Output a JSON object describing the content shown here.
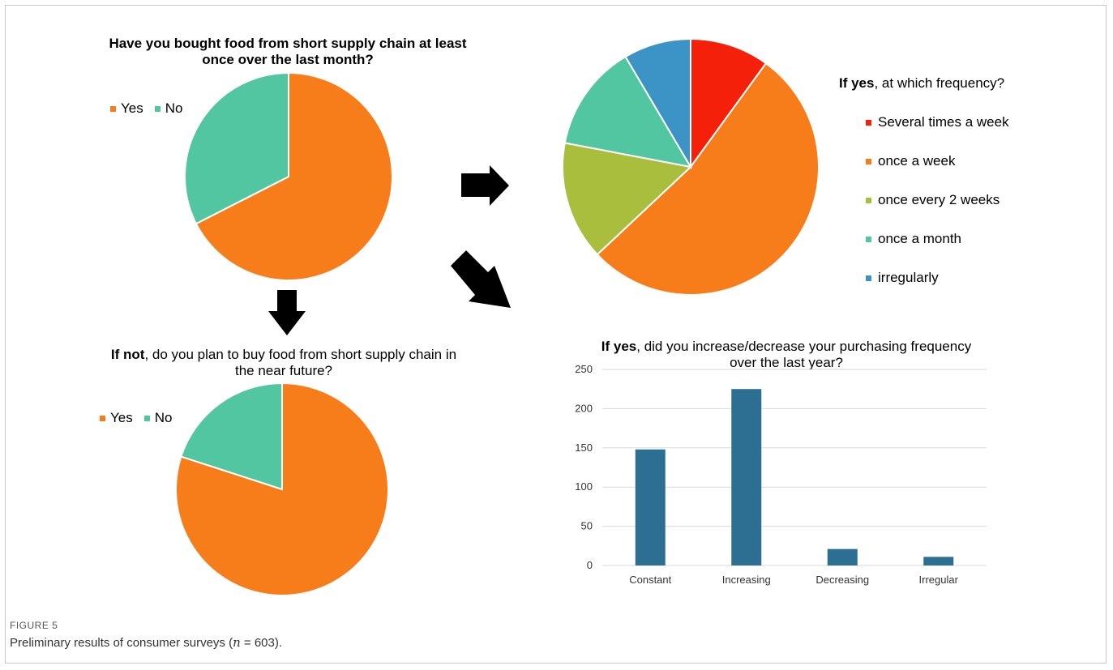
{
  "figure": {
    "label": "FIGURE 5",
    "caption_prefix": "Preliminary results of consumer surveys (",
    "caption_n": "n",
    "caption_suffix": " = 603)."
  },
  "chart_data": [
    {
      "type": "pie",
      "title_bold": "Have you bought food from short supply chain at least once over the last month?",
      "title_rest": "",
      "categories": [
        "Yes",
        "No"
      ],
      "values": [
        67.5,
        32.5
      ],
      "colors": [
        "#f77d1b",
        "#52c6a0"
      ],
      "legend_position": "top-left"
    },
    {
      "type": "pie",
      "title_bold": "If yes",
      "title_rest": ", at which frequency?",
      "categories": [
        "Several times a week",
        "once a week",
        "once every 2 weeks",
        "once a month",
        "irregularly"
      ],
      "values": [
        10,
        53,
        15,
        13.5,
        8.5
      ],
      "colors": [
        "#f5200a",
        "#f77d1b",
        "#a9be3c",
        "#52c6a0",
        "#3b93c6"
      ],
      "legend_position": "right"
    },
    {
      "type": "pie",
      "title_bold": "If not",
      "title_rest": ", do you plan to buy food from short supply chain in the near future?",
      "categories": [
        "Yes",
        "No"
      ],
      "values": [
        80,
        20
      ],
      "colors": [
        "#f77d1b",
        "#52c6a0"
      ],
      "legend_position": "top-left"
    },
    {
      "type": "bar",
      "title_bold": "If yes",
      "title_rest": ", did you increase/decrease your purchasing frequency over the last year?",
      "categories": [
        "Constant",
        "Increasing",
        "Decreasing",
        "Irregular"
      ],
      "values": [
        148,
        225,
        21,
        11
      ],
      "ylim": [
        0,
        250
      ],
      "yticks": [
        "0",
        "50",
        "100",
        "150",
        "200",
        "250"
      ],
      "bar_color": "#2d6e93",
      "grid": true
    }
  ],
  "arrows": [
    "arrow-right-icon",
    "arrow-down-right-icon",
    "arrow-down-icon"
  ]
}
